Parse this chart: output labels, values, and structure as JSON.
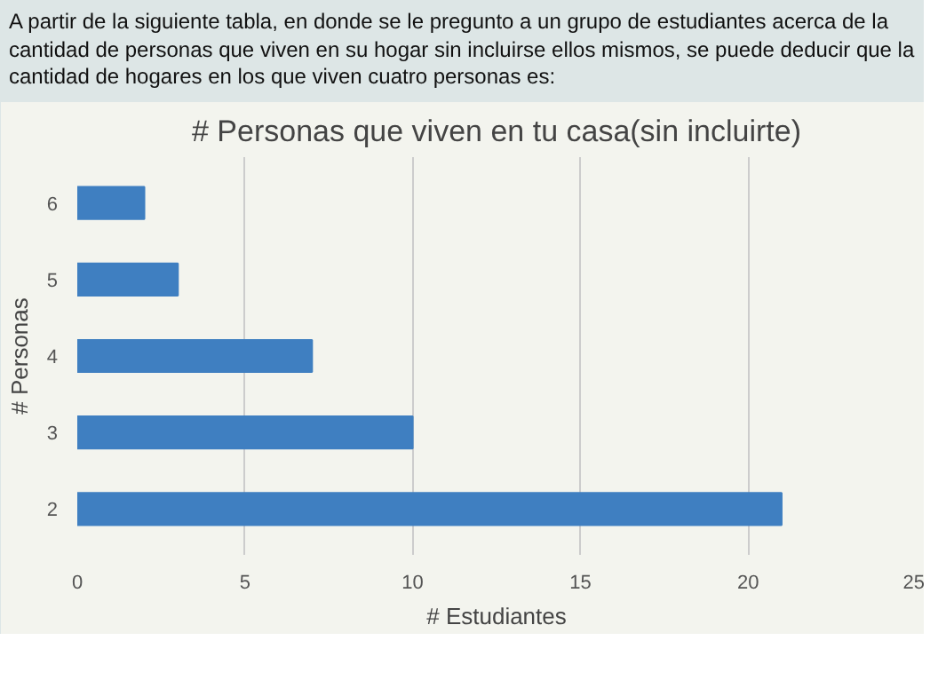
{
  "chart_data": {
    "type": "bar",
    "orientation": "horizontal",
    "title": "# Personas que viven en tu casa(sin incluirte)",
    "xlabel": "# Estudiantes",
    "ylabel": "# Personas",
    "annotations": [
      "A partir de la siguiente tabla, en donde se le pregunto a un grupo de estudiantes acerca de la cantidad de personas que viven en su hogar sin incluirse ellos mismos, se puede deducir que la cantidad de hogares en los que viven cuatro personas es:"
    ],
    "categories": [
      "6",
      "5",
      "4",
      "3",
      "2"
    ],
    "values": [
      2,
      3,
      7,
      10,
      21
    ],
    "color": "#3f7fc1",
    "xlim": [
      0,
      25
    ],
    "xticks": [
      0,
      5,
      10,
      15,
      20,
      25
    ],
    "grid": "x"
  }
}
